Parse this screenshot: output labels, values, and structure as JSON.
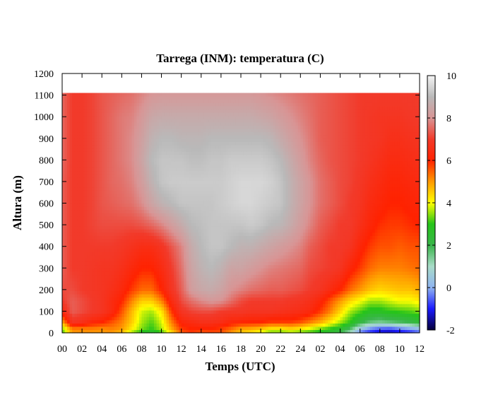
{
  "chart_data": {
    "type": "heatmap",
    "title": "Tarrega (INM): temperatura (C)",
    "xlabel": "Temps (UTC)",
    "ylabel": "Altura (m)",
    "x_ticks": [
      "00",
      "02",
      "04",
      "06",
      "08",
      "10",
      "12",
      "14",
      "16",
      "18",
      "20",
      "22",
      "24",
      "02",
      "04",
      "06",
      "08",
      "10",
      "12"
    ],
    "x_range_hours": [
      0,
      36
    ],
    "y_ticks": [
      0,
      100,
      200,
      300,
      400,
      500,
      600,
      700,
      800,
      900,
      1000,
      1100,
      1200
    ],
    "ylim": [
      0,
      1200
    ],
    "data_top_m": 1110,
    "colorbar": {
      "min": -2,
      "max": 10,
      "ticks": [
        -2,
        0,
        2,
        4,
        6,
        8,
        10
      ],
      "stops": [
        {
          "value": -2,
          "color": "#06003a"
        },
        {
          "value": -1,
          "color": "#1a1aff"
        },
        {
          "value": 0,
          "color": "#8fb4f0"
        },
        {
          "value": 1,
          "color": "#a9dcc8"
        },
        {
          "value": 2,
          "color": "#39b54a"
        },
        {
          "value": 3,
          "color": "#26c41a"
        },
        {
          "value": 4,
          "color": "#ffff00"
        },
        {
          "value": 5,
          "color": "#ff9900"
        },
        {
          "value": 6,
          "color": "#ff2200"
        },
        {
          "value": 7,
          "color": "#f23a2a"
        },
        {
          "value": 8,
          "color": "#d89595"
        },
        {
          "value": 9,
          "color": "#b9b9b9"
        },
        {
          "value": 10,
          "color": "#f4f4f4"
        }
      ]
    },
    "temperature_grid": {
      "hours": [
        0,
        1,
        2,
        3,
        4,
        5,
        6,
        7,
        8,
        9,
        10,
        11,
        12,
        13,
        14,
        15,
        16,
        17,
        18,
        19,
        20,
        21,
        22,
        23,
        24,
        25,
        26,
        27,
        28,
        29,
        30,
        31,
        32,
        33,
        34,
        35,
        36
      ],
      "heights_m": [
        0,
        20,
        50,
        100,
        150,
        200,
        300,
        400,
        500,
        600,
        700,
        800,
        900,
        1000,
        1110
      ],
      "values": [
        [
          3.0,
          5.0,
          5.0,
          5.0,
          5.0,
          5.0,
          4.6,
          3.5,
          2.8,
          2.5,
          3.0,
          4.2,
          5.5,
          5.8,
          5.5,
          5.6,
          5.6,
          5.0,
          4.5,
          4.2,
          3.8,
          3.2,
          3.2,
          3.4,
          3.2,
          3.0,
          2.7,
          2.4,
          2.0,
          1.0,
          -0.5,
          -1.0,
          -1.4,
          -1.5,
          -1.3,
          -1.0,
          -0.6
        ],
        [
          3.4,
          5.2,
          5.2,
          5.2,
          5.1,
          5.2,
          5.0,
          4.2,
          3.4,
          3.0,
          3.6,
          4.8,
          5.8,
          6.0,
          6.0,
          6.0,
          5.8,
          5.4,
          4.9,
          4.8,
          4.6,
          4.2,
          4.2,
          4.4,
          4.2,
          3.8,
          3.4,
          3.0,
          2.6,
          1.8,
          0.4,
          -0.3,
          -0.6,
          -0.7,
          -0.4,
          -0.2,
          0.2
        ],
        [
          4.8,
          6.8,
          6.6,
          6.2,
          6.0,
          5.6,
          5.2,
          4.5,
          3.6,
          3.2,
          3.8,
          5.2,
          6.2,
          6.4,
          6.6,
          6.6,
          6.5,
          6.2,
          6.1,
          6.0,
          6.0,
          5.8,
          5.8,
          5.8,
          5.6,
          5.2,
          4.8,
          4.2,
          3.6,
          3.0,
          2.2,
          1.6,
          1.4,
          1.6,
          1.8,
          2.0,
          2.4
        ],
        [
          6.4,
          7.4,
          7.2,
          7.0,
          6.8,
          6.4,
          5.6,
          4.7,
          3.8,
          3.6,
          4.2,
          5.8,
          6.8,
          7.1,
          7.2,
          7.2,
          7.0,
          6.9,
          6.9,
          6.8,
          6.8,
          6.8,
          6.7,
          6.6,
          6.5,
          6.3,
          5.8,
          5.2,
          4.4,
          3.6,
          3.2,
          2.8,
          2.8,
          3.0,
          3.1,
          3.2,
          3.4
        ],
        [
          7.0,
          7.4,
          7.2,
          7.0,
          6.8,
          6.4,
          6.0,
          5.2,
          4.5,
          4.5,
          5.2,
          6.4,
          7.2,
          7.6,
          7.9,
          8.1,
          8.0,
          7.6,
          7.2,
          7.0,
          7.0,
          7.0,
          7.0,
          6.9,
          6.8,
          6.6,
          6.2,
          5.6,
          5.0,
          4.4,
          4.0,
          3.6,
          3.6,
          3.8,
          4.0,
          4.0,
          4.2
        ],
        [
          7.2,
          7.2,
          7.0,
          6.9,
          6.8,
          6.6,
          6.3,
          5.8,
          5.4,
          5.4,
          6.0,
          6.8,
          7.4,
          8.2,
          8.5,
          8.6,
          8.4,
          8.0,
          7.8,
          7.6,
          7.5,
          7.4,
          7.4,
          7.3,
          7.2,
          7.0,
          6.8,
          6.4,
          6.0,
          5.4,
          5.0,
          4.6,
          4.4,
          4.5,
          4.6,
          4.6,
          4.8
        ],
        [
          7.4,
          7.0,
          7.0,
          6.9,
          6.8,
          6.8,
          6.6,
          6.3,
          6.0,
          6.0,
          6.4,
          7.0,
          7.6,
          8.4,
          8.8,
          9.0,
          8.8,
          8.4,
          8.4,
          8.2,
          8.0,
          7.8,
          7.7,
          7.6,
          7.5,
          7.2,
          7.1,
          7.0,
          6.8,
          6.2,
          5.8,
          5.4,
          5.2,
          5.2,
          5.2,
          5.3,
          5.4
        ],
        [
          7.4,
          7.0,
          7.0,
          7.0,
          7.0,
          7.0,
          6.9,
          6.7,
          6.5,
          6.5,
          6.8,
          7.3,
          7.8,
          8.6,
          9.0,
          9.2,
          9.2,
          9.0,
          8.8,
          8.8,
          8.6,
          8.4,
          8.2,
          8.0,
          7.8,
          7.4,
          7.2,
          7.0,
          7.0,
          6.8,
          6.2,
          5.8,
          5.6,
          5.6,
          5.5,
          5.6,
          5.6
        ],
        [
          7.4,
          7.0,
          7.0,
          7.1,
          7.2,
          7.2,
          7.2,
          7.2,
          7.3,
          7.5,
          7.8,
          8.2,
          8.6,
          9.0,
          9.1,
          9.2,
          9.2,
          9.2,
          9.2,
          9.3,
          9.2,
          9.0,
          8.9,
          8.6,
          8.2,
          7.8,
          7.4,
          7.2,
          7.0,
          7.0,
          6.6,
          6.2,
          5.9,
          5.8,
          5.8,
          5.9,
          6.0
        ],
        [
          7.4,
          7.0,
          7.0,
          7.1,
          7.3,
          7.4,
          7.5,
          7.6,
          7.9,
          8.4,
          8.8,
          9.0,
          9.2,
          9.2,
          9.2,
          9.2,
          9.3,
          9.4,
          9.5,
          9.5,
          9.4,
          9.3,
          9.2,
          8.8,
          8.4,
          8.0,
          7.6,
          7.4,
          7.2,
          7.0,
          6.8,
          6.4,
          6.2,
          6.0,
          6.0,
          6.1,
          6.2
        ],
        [
          7.4,
          7.0,
          7.0,
          7.1,
          7.3,
          7.5,
          7.6,
          7.8,
          8.2,
          8.8,
          9.2,
          9.3,
          9.3,
          9.3,
          9.3,
          9.3,
          9.3,
          9.4,
          9.5,
          9.5,
          9.5,
          9.4,
          9.2,
          8.8,
          8.4,
          8.0,
          7.6,
          7.4,
          7.2,
          7.1,
          6.9,
          6.6,
          6.4,
          6.2,
          6.2,
          6.3,
          6.4
        ],
        [
          7.5,
          7.0,
          7.0,
          7.1,
          7.3,
          7.5,
          7.7,
          7.9,
          8.4,
          9.0,
          9.2,
          9.2,
          9.2,
          9.1,
          9.1,
          9.2,
          9.2,
          9.3,
          9.3,
          9.3,
          9.3,
          9.2,
          9.0,
          8.6,
          8.2,
          7.8,
          7.5,
          7.3,
          7.2,
          7.1,
          7.0,
          6.8,
          6.6,
          6.4,
          6.4,
          6.5,
          6.6
        ],
        [
          7.5,
          7.0,
          7.0,
          7.1,
          7.3,
          7.5,
          7.7,
          7.9,
          8.3,
          8.8,
          9.0,
          9.0,
          8.9,
          8.9,
          8.9,
          9.0,
          9.0,
          9.0,
          9.0,
          9.0,
          9.0,
          8.9,
          8.6,
          8.3,
          8.0,
          7.7,
          7.4,
          7.3,
          7.2,
          7.1,
          7.0,
          6.9,
          6.8,
          6.6,
          6.6,
          6.7,
          6.8
        ],
        [
          7.5,
          7.0,
          7.0,
          7.1,
          7.3,
          7.5,
          7.7,
          7.8,
          8.1,
          8.5,
          8.6,
          8.6,
          8.6,
          8.6,
          8.6,
          8.6,
          8.6,
          8.6,
          8.6,
          8.6,
          8.5,
          8.4,
          8.2,
          8.0,
          7.8,
          7.6,
          7.4,
          7.3,
          7.2,
          7.1,
          7.0,
          6.9,
          6.8,
          6.8,
          6.8,
          6.9,
          7.0
        ],
        [
          7.5,
          7.0,
          7.0,
          7.1,
          7.3,
          7.4,
          7.5,
          7.6,
          7.8,
          8.0,
          8.1,
          8.1,
          8.1,
          8.1,
          8.1,
          8.1,
          8.1,
          8.1,
          8.1,
          8.1,
          8.0,
          7.9,
          7.8,
          7.7,
          7.6,
          7.5,
          7.4,
          7.3,
          7.2,
          7.1,
          7.0,
          7.0,
          7.0,
          7.0,
          7.0,
          7.0,
          7.0
        ]
      ]
    }
  }
}
